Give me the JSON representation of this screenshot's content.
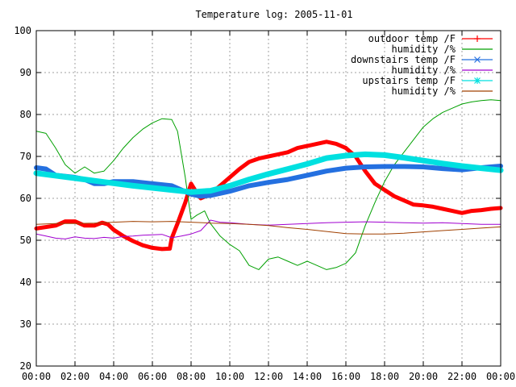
{
  "chart_data": {
    "type": "line",
    "title": "Temperature log: 2005-11-01",
    "xlabel": "",
    "ylabel": "",
    "xlim": [
      0,
      24
    ],
    "ylim": [
      20,
      100
    ],
    "grid": true,
    "legend_position": "top-right",
    "x_ticks": [
      "00:00",
      "02:00",
      "04:00",
      "06:00",
      "08:00",
      "10:00",
      "12:00",
      "14:00",
      "16:00",
      "18:00",
      "20:00",
      "22:00",
      "00:00"
    ],
    "y_ticks": [
      "20",
      "30",
      "40",
      "50",
      "60",
      "70",
      "80",
      "90",
      "100"
    ],
    "series": [
      {
        "name": "outdoor temp /F",
        "color": "#ff0000",
        "marker": "plus",
        "width": 5,
        "points": [
          [
            0,
            52.8
          ],
          [
            1,
            53.5
          ],
          [
            1.5,
            54.5
          ],
          [
            2,
            54.5
          ],
          [
            2.5,
            53.5
          ],
          [
            3,
            53.5
          ],
          [
            3.4,
            54.2
          ],
          [
            3.7,
            53.8
          ],
          [
            4,
            52.5
          ],
          [
            4.5,
            51
          ],
          [
            5,
            49.8
          ],
          [
            5.5,
            48.8
          ],
          [
            6,
            48.2
          ],
          [
            6.5,
            47.9
          ],
          [
            6.9,
            48
          ],
          [
            7,
            50.5
          ],
          [
            7.3,
            54
          ],
          [
            7.7,
            59
          ],
          [
            8,
            63.5
          ],
          [
            8.2,
            62
          ],
          [
            8.5,
            60
          ],
          [
            9,
            61
          ],
          [
            9.5,
            63
          ],
          [
            10,
            65
          ],
          [
            10.5,
            67
          ],
          [
            11,
            68.7
          ],
          [
            11.5,
            69.5
          ],
          [
            12,
            70
          ],
          [
            12.5,
            70.5
          ],
          [
            13,
            71
          ],
          [
            13.5,
            72
          ],
          [
            14,
            72.5
          ],
          [
            14.5,
            73
          ],
          [
            15,
            73.5
          ],
          [
            15.5,
            73
          ],
          [
            16,
            72
          ],
          [
            16.5,
            70
          ],
          [
            17,
            66.5
          ],
          [
            17.5,
            63.5
          ],
          [
            18,
            62
          ],
          [
            18.5,
            60.5
          ],
          [
            19,
            59.5
          ],
          [
            19.5,
            58.5
          ],
          [
            20,
            58.3
          ],
          [
            20.5,
            58
          ],
          [
            21,
            57.5
          ],
          [
            21.5,
            57
          ],
          [
            22,
            56.5
          ],
          [
            22.5,
            57
          ],
          [
            23,
            57.2
          ],
          [
            23.5,
            57.5
          ],
          [
            24,
            57.7
          ]
        ]
      },
      {
        "name": "humidity /%",
        "color": "#00a000",
        "marker": "none",
        "width": 1,
        "points": [
          [
            0,
            76
          ],
          [
            0.5,
            75.5
          ],
          [
            1,
            72
          ],
          [
            1.5,
            68
          ],
          [
            2,
            66
          ],
          [
            2.5,
            67.5
          ],
          [
            3,
            66
          ],
          [
            3.5,
            66.5
          ],
          [
            4,
            69
          ],
          [
            4.5,
            72
          ],
          [
            5,
            74.5
          ],
          [
            5.5,
            76.5
          ],
          [
            6,
            78
          ],
          [
            6.5,
            79
          ],
          [
            7,
            78.8
          ],
          [
            7.3,
            76
          ],
          [
            7.7,
            65
          ],
          [
            8,
            55
          ],
          [
            8.3,
            56
          ],
          [
            8.7,
            57
          ],
          [
            9,
            54
          ],
          [
            9.5,
            51
          ],
          [
            10,
            49
          ],
          [
            10.5,
            47.5
          ],
          [
            11,
            44
          ],
          [
            11.5,
            43
          ],
          [
            12,
            45.5
          ],
          [
            12.5,
            46
          ],
          [
            13,
            45
          ],
          [
            13.5,
            44
          ],
          [
            14,
            45
          ],
          [
            14.5,
            44
          ],
          [
            15,
            43
          ],
          [
            15.5,
            43.5
          ],
          [
            16,
            44.5
          ],
          [
            16.5,
            47
          ],
          [
            17,
            53.5
          ],
          [
            17.5,
            59
          ],
          [
            18,
            64
          ],
          [
            18.5,
            68
          ],
          [
            19,
            71
          ],
          [
            19.5,
            74
          ],
          [
            20,
            77
          ],
          [
            20.5,
            79
          ],
          [
            21,
            80.5
          ],
          [
            21.5,
            81.5
          ],
          [
            22,
            82.5
          ],
          [
            22.5,
            83
          ],
          [
            23,
            83.3
          ],
          [
            23.5,
            83.5
          ],
          [
            24,
            83.3
          ]
        ]
      },
      {
        "name": "downstairs temp /F",
        "color": "#2470e0",
        "marker": "x",
        "width": 6,
        "points": [
          [
            0,
            67.3
          ],
          [
            0.5,
            67
          ],
          [
            1,
            65.5
          ],
          [
            2,
            65
          ],
          [
            2.5,
            64.5
          ],
          [
            3,
            63.5
          ],
          [
            3.5,
            63.5
          ],
          [
            4,
            64
          ],
          [
            5,
            64
          ],
          [
            6,
            63.5
          ],
          [
            7,
            63
          ],
          [
            7.5,
            62
          ],
          [
            8,
            61
          ],
          [
            8.5,
            60.5
          ],
          [
            9,
            60.7
          ],
          [
            10,
            61.7
          ],
          [
            11,
            63
          ],
          [
            12,
            63.8
          ],
          [
            13,
            64.5
          ],
          [
            14,
            65.5
          ],
          [
            15,
            66.5
          ],
          [
            16,
            67.2
          ],
          [
            17,
            67.5
          ],
          [
            18,
            67.6
          ],
          [
            19,
            67.6
          ],
          [
            20,
            67.5
          ],
          [
            21,
            67.1
          ],
          [
            22,
            66.8
          ],
          [
            23,
            67.3
          ],
          [
            24,
            67.7
          ]
        ]
      },
      {
        "name": "humidity /%",
        "color": "#a000d0",
        "marker": "none",
        "width": 1,
        "points": [
          [
            0,
            51.5
          ],
          [
            0.5,
            51
          ],
          [
            1,
            50.5
          ],
          [
            1.5,
            50.3
          ],
          [
            2,
            50.8
          ],
          [
            2.5,
            50.5
          ],
          [
            3,
            50.4
          ],
          [
            3.5,
            50.7
          ],
          [
            4,
            50.5
          ],
          [
            4.5,
            50.9
          ],
          [
            5,
            51
          ],
          [
            5.5,
            51.2
          ],
          [
            6,
            51.3
          ],
          [
            6.5,
            51.4
          ],
          [
            7,
            50.6
          ],
          [
            7.5,
            51
          ],
          [
            8,
            51.5
          ],
          [
            8.5,
            52.3
          ],
          [
            9,
            54.8
          ],
          [
            9.5,
            54.3
          ],
          [
            10,
            54.2
          ],
          [
            11,
            53.8
          ],
          [
            12,
            53.6
          ],
          [
            13,
            53.8
          ],
          [
            14,
            54
          ],
          [
            15,
            54.2
          ],
          [
            16,
            54.3
          ],
          [
            17,
            54.4
          ],
          [
            18,
            54.3
          ],
          [
            19,
            54.2
          ],
          [
            20,
            54.1
          ],
          [
            21,
            54.2
          ],
          [
            22,
            54
          ],
          [
            23,
            53.8
          ],
          [
            24,
            53.8
          ]
        ]
      },
      {
        "name": "upstairs temp /F",
        "color": "#00e0e0",
        "marker": "star",
        "width": 7,
        "points": [
          [
            0,
            66
          ],
          [
            1,
            65.4
          ],
          [
            2,
            64.8
          ],
          [
            3,
            64.2
          ],
          [
            4,
            63.6
          ],
          [
            5,
            63
          ],
          [
            6,
            62.5
          ],
          [
            7,
            62
          ],
          [
            8,
            61.5
          ],
          [
            9,
            61.8
          ],
          [
            10,
            63
          ],
          [
            11,
            64.5
          ],
          [
            12,
            65.8
          ],
          [
            13,
            67
          ],
          [
            14,
            68.2
          ],
          [
            15,
            69.6
          ],
          [
            16,
            70.2
          ],
          [
            17,
            70.5
          ],
          [
            18,
            70.3
          ],
          [
            19,
            69.7
          ],
          [
            20,
            69
          ],
          [
            21,
            68.3
          ],
          [
            22,
            67.7
          ],
          [
            23,
            67.2
          ],
          [
            24,
            66.7
          ]
        ]
      },
      {
        "name": "humidity /%",
        "color": "#a04000",
        "marker": "none",
        "width": 1,
        "points": [
          [
            0,
            53.8
          ],
          [
            1,
            54
          ],
          [
            2,
            54
          ],
          [
            3,
            54.1
          ],
          [
            4,
            54.3
          ],
          [
            5,
            54.5
          ],
          [
            6,
            54.4
          ],
          [
            7,
            54.5
          ],
          [
            8,
            54.3
          ],
          [
            9,
            54.1
          ],
          [
            10,
            54
          ],
          [
            11,
            53.8
          ],
          [
            12,
            53.5
          ],
          [
            13,
            53
          ],
          [
            14,
            52.6
          ],
          [
            15,
            52.1
          ],
          [
            16,
            51.6
          ],
          [
            17,
            51.5
          ],
          [
            18,
            51.5
          ],
          [
            19,
            51.7
          ],
          [
            20,
            52
          ],
          [
            21,
            52.3
          ],
          [
            22,
            52.6
          ],
          [
            23,
            52.9
          ],
          [
            24,
            53.2
          ]
        ]
      }
    ]
  }
}
